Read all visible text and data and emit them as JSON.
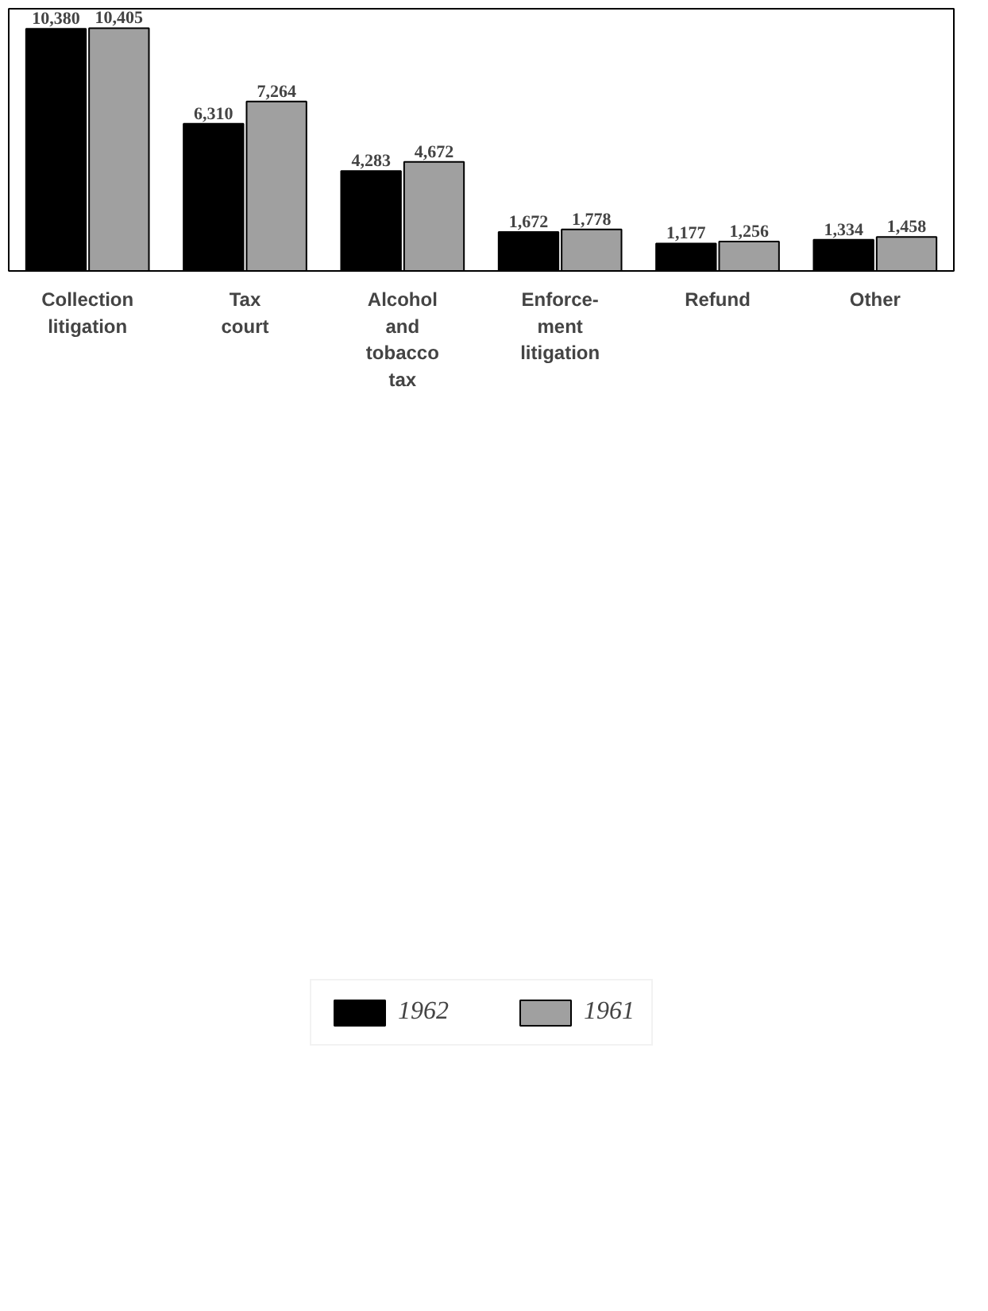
{
  "chart_data": {
    "type": "bar",
    "categories": [
      "Collection\nlitigation",
      "Tax\ncourt",
      "Alcohol\nand\ntobacco\ntax",
      "Enforce-\nment\nlitigation",
      "Refund",
      "Other"
    ],
    "series": [
      {
        "name": "1962",
        "color": "#000000",
        "values": [
          10380,
          6310,
          4283,
          1672,
          1177,
          1334
        ],
        "value_labels": [
          "10,380",
          "6,310",
          "4,283",
          "1,672",
          "1,177",
          "1,334"
        ]
      },
      {
        "name": "1961",
        "color": "#a0a0a0",
        "values": [
          10405,
          7264,
          4672,
          1778,
          1256,
          1458
        ],
        "value_labels": [
          "10,405",
          "7,264",
          "4,672",
          "1,778",
          "1,256",
          "1,458"
        ]
      }
    ],
    "legend": "bottom",
    "grid": false
  }
}
